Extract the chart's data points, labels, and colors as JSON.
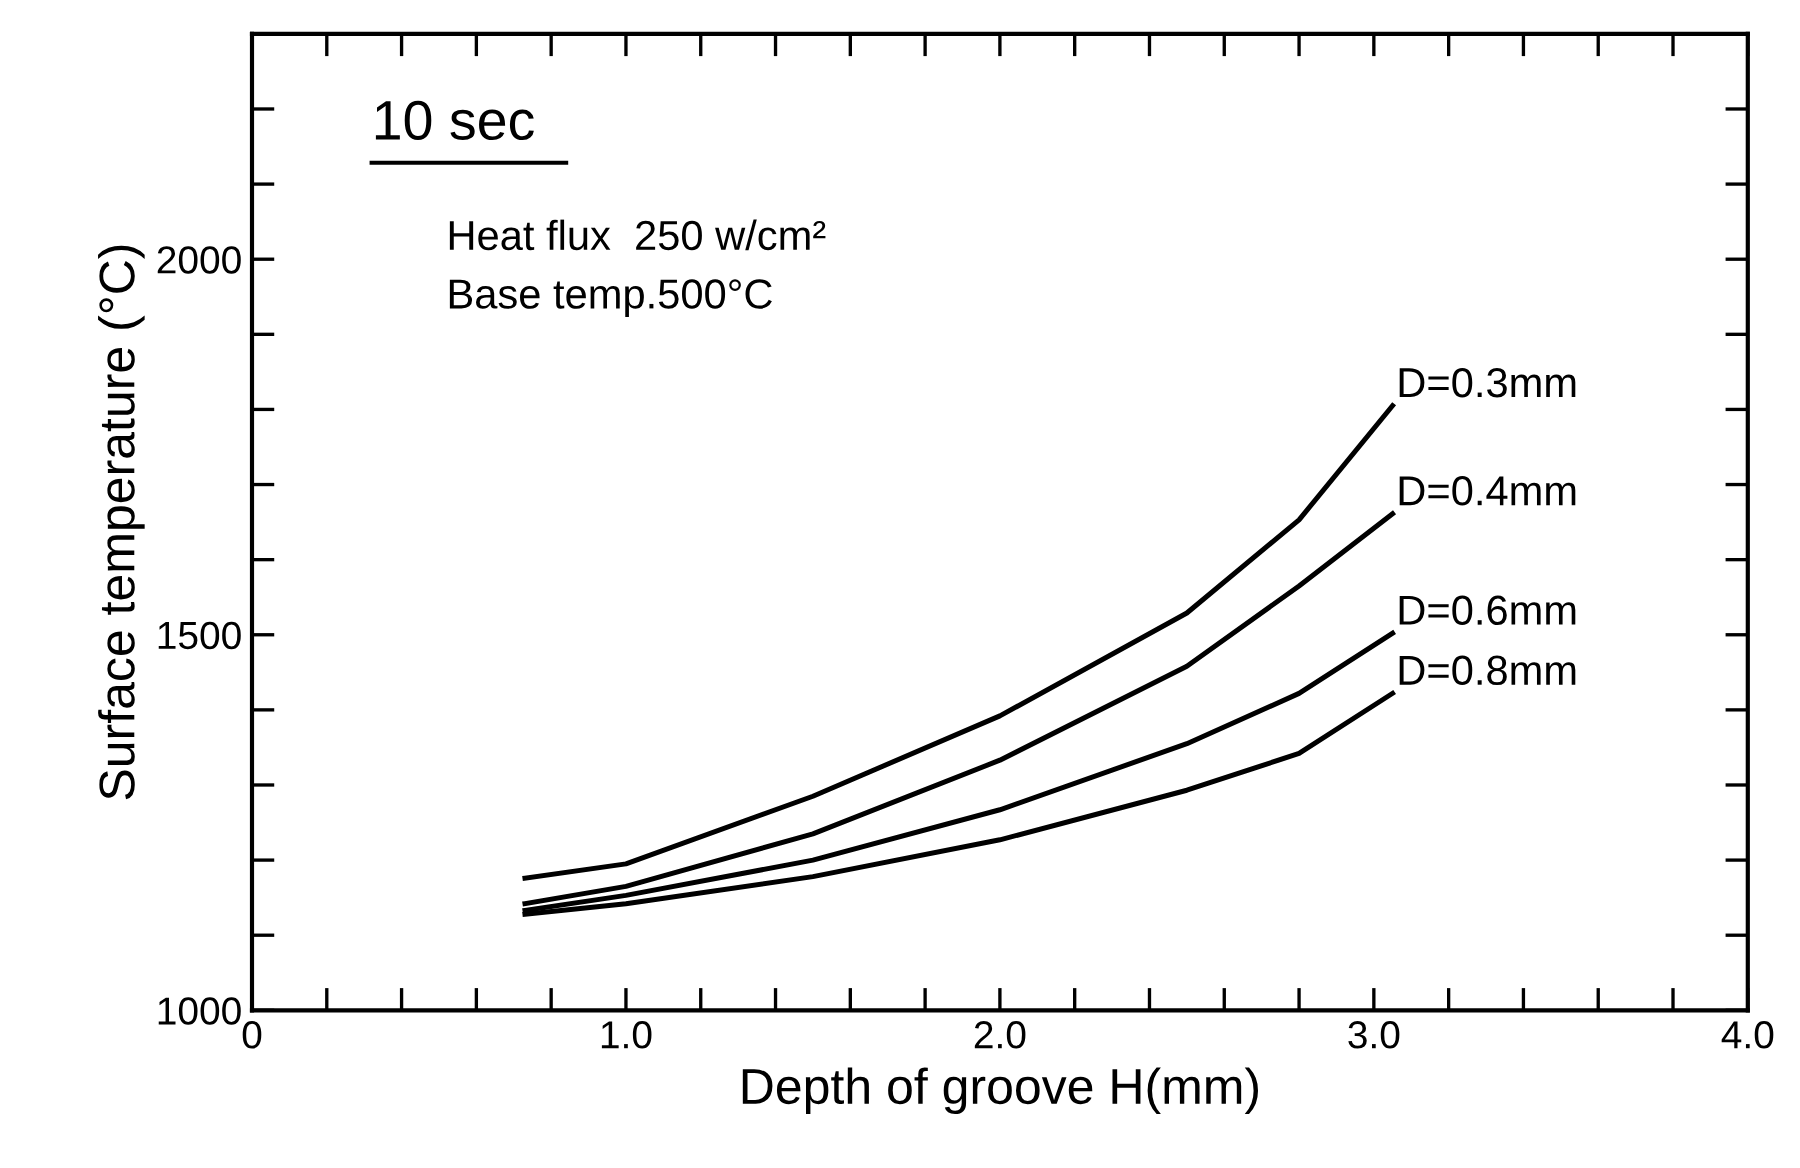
{
  "chart_data": {
    "type": "line",
    "xlabel": "Depth of groove H(mm)",
    "ylabel": "Surface temperature (°C)",
    "xlim": [
      0,
      4.0
    ],
    "ylim": [
      1000,
      2300
    ],
    "xticks": [
      0,
      {
        "value": 0.2,
        "label": null
      },
      {
        "value": 0.4,
        "label": null
      },
      {
        "value": 0.6,
        "label": null
      },
      {
        "value": 0.8,
        "label": null
      },
      {
        "value": 1.0,
        "label": "1.0"
      },
      {
        "value": 1.2,
        "label": null
      },
      {
        "value": 1.4,
        "label": null
      },
      {
        "value": 1.6,
        "label": null
      },
      {
        "value": 1.8,
        "label": null
      },
      {
        "value": 2.0,
        "label": "2.0"
      },
      {
        "value": 2.2,
        "label": null
      },
      {
        "value": 2.4,
        "label": null
      },
      {
        "value": 2.6,
        "label": null
      },
      {
        "value": 2.8,
        "label": null
      },
      {
        "value": 3.0,
        "label": "3.0"
      },
      {
        "value": 3.2,
        "label": null
      },
      {
        "value": 3.4,
        "label": null
      },
      {
        "value": 3.6,
        "label": null
      },
      {
        "value": 3.8,
        "label": null
      },
      {
        "value": 4.0,
        "label": "4.0"
      }
    ],
    "yticks": [
      1000,
      {
        "value": 1100,
        "label": null
      },
      {
        "value": 1200,
        "label": null
      },
      {
        "value": 1300,
        "label": null
      },
      {
        "value": 1400,
        "label": null
      },
      1500,
      {
        "value": 1600,
        "label": null
      },
      {
        "value": 1700,
        "label": null
      },
      {
        "value": 1800,
        "label": null
      },
      {
        "value": 1900,
        "label": null
      },
      2000,
      {
        "value": 2100,
        "label": null
      },
      {
        "value": 2200,
        "label": null
      }
    ],
    "x": [
      0.73,
      1.0,
      1.5,
      2.0,
      2.5,
      2.8,
      3.05
    ],
    "grid": false,
    "legend": false,
    "marker": "none",
    "line_style": "solid",
    "series": [
      {
        "name": "D=0.3mm",
        "color": "#000000",
        "values": [
          1176,
          1195,
          1285,
          1392,
          1529,
          1653,
          1805
        ]
      },
      {
        "name": "D=0.4mm",
        "color": "#000000",
        "values": [
          1142,
          1165,
          1235,
          1333,
          1458,
          1565,
          1661
        ]
      },
      {
        "name": "D=0.6mm",
        "color": "#000000",
        "values": [
          1133,
          1153,
          1200,
          1267,
          1355,
          1422,
          1502
        ]
      },
      {
        "name": "D=0.8mm",
        "color": "#000000",
        "values": [
          1128,
          1142,
          1178,
          1227,
          1293,
          1342,
          1422
        ]
      }
    ],
    "annotations": [
      "10 sec",
      "Heat flux  250 w/cm²",
      "Base temp.500°C"
    ]
  }
}
